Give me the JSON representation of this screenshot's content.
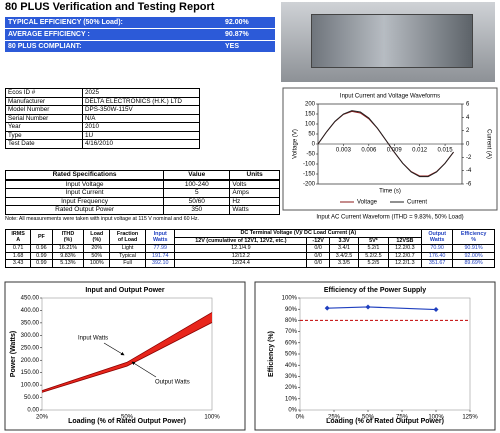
{
  "header": {
    "title": "80 PLUS Verification and Testing Report"
  },
  "summary": [
    {
      "label": "TYPICAL EFFICIENCY (50% Load):",
      "value": "92.00%"
    },
    {
      "label": "AVERAGE EFFICIENCY :",
      "value": "90.87%"
    },
    {
      "label": "80 PLUS COMPLIANT:",
      "value": "YES"
    }
  ],
  "info": [
    [
      "Ecos ID #",
      "2025"
    ],
    [
      "Manufacturer",
      "DELTA ELECTRONICS (H.K.) LTD"
    ],
    [
      "Model Number",
      "DPS-350W-115V"
    ],
    [
      "Serial Number",
      "N/A"
    ],
    [
      "Year",
      "2010"
    ],
    [
      "Type",
      "1U"
    ],
    [
      "Test Date",
      "4/16/2010"
    ]
  ],
  "waveform": {
    "type": "line",
    "title": "Input Current and Voltage Waveforms",
    "x": [
      0,
      0.001,
      0.002,
      0.003,
      0.004,
      0.005,
      0.006,
      0.007,
      0.008,
      0.009,
      0.01,
      0.011,
      0.012,
      0.013,
      0.014,
      0.015,
      0.016
    ],
    "xlim": [
      0,
      0.017
    ],
    "xticks": [
      0.003,
      0.006,
      0.009,
      0.012,
      0.015
    ],
    "ylim": [
      -200,
      200
    ],
    "yticks": [
      200,
      150,
      100,
      50,
      0,
      -50,
      -100,
      -150,
      -200
    ],
    "y2lim": [
      -6,
      6
    ],
    "y2ticks": [
      6,
      4,
      2,
      0,
      -2,
      -4,
      -6
    ],
    "xlabel": "Time (s)",
    "ylabel": "Voltage (V)",
    "y2label": "Current (A)",
    "series": [
      {
        "name": "Voltage",
        "color": "#8b1a1a",
        "values": [
          0,
          60,
          112,
          148,
          163,
          155,
          126,
          79,
          20,
          -41,
          -96,
          -138,
          -160,
          -160,
          -138,
          -96,
          -41
        ]
      },
      {
        "name": "Current",
        "color": "#222222",
        "axis": "y2",
        "values": [
          0,
          1.8,
          3.4,
          4.5,
          5,
          4.8,
          3.9,
          2.4,
          0.6,
          -1.2,
          -2.9,
          -4.2,
          -4.9,
          -4.9,
          -4.2,
          -2.9,
          -1.2
        ]
      }
    ],
    "caption": "Input AC Current Waveform (ITHD = 9.83%, 50% Load)"
  },
  "rated": {
    "header": [
      "Rated Specifications",
      "Value",
      "Units"
    ],
    "rows": [
      [
        "Input Voltage",
        "100-240",
        "Volts"
      ],
      [
        "Input Current",
        "5",
        "Amps"
      ],
      [
        "Input Frequency",
        "50/60",
        "Hz"
      ],
      [
        "Rated Output Power",
        "350",
        "Watts"
      ]
    ]
  },
  "note": "Note: All measurements were taken with input voltage at 115 V nominal and 60 Hz.",
  "measurements": {
    "header": [
      "IRMS\nA",
      "PF",
      "ITHD\n(%)",
      "Load\n(%)",
      "Fraction\nof Load",
      "Input\nWatts",
      "DC Terminal Voltage (V)/ DC Load Current (A)",
      "Output\nWatts",
      "Efficiency\n%"
    ],
    "subheader": [
      "12V (cumulative of 12V1, 12V2, etc.)",
      "-12V",
      "3.3V",
      "5V*",
      "12VSB"
    ],
    "rows": [
      [
        "0.71",
        "0.96",
        "16.21%",
        "20%",
        "Light",
        "77.99",
        "12.1/4.9",
        "0/0",
        "3.4/1",
        "5.2/1",
        "12.2/0.3",
        "70.90",
        "90.91%"
      ],
      [
        "1.68",
        "0.99",
        "9.83%",
        "50%",
        "Typical",
        "191.74",
        "12/12.2",
        "0/0",
        "3.4/2.5",
        "5.2/2.5",
        "12.2/0.7",
        "176.40",
        "92.00%"
      ],
      [
        "3.43",
        "0.99",
        "5.13%",
        "100%",
        "Full",
        "392.10",
        "12/24.4",
        "0/0",
        "3.3/5",
        "5.2/5",
        "12.2/1.3",
        "351.67",
        "89.69%"
      ]
    ]
  },
  "power_chart": {
    "type": "line",
    "title": "Input and Output Power",
    "categories": [
      "20%",
      "50%",
      "100%"
    ],
    "ylim": [
      0,
      450
    ],
    "yticks": [
      {
        "value": 0,
        "label": "0.00"
      },
      {
        "value": 50,
        "label": "50.00"
      },
      {
        "value": 100,
        "label": "100.00"
      },
      {
        "value": 150,
        "label": "150.00"
      },
      {
        "value": 200,
        "label": "200.00"
      },
      {
        "value": 250,
        "label": "250.00"
      },
      {
        "value": 300,
        "label": "300.00"
      },
      {
        "value": 350,
        "label": "350.00"
      },
      {
        "value": 400,
        "label": "400.00"
      },
      {
        "value": 450,
        "label": "450.00"
      }
    ],
    "ylabel": "Power (Watts)",
    "xlabel": "Loading (% of Rated Output Power)",
    "fill": "#e8261c",
    "series": [
      {
        "name": "Input Watts",
        "color": "#8b0000",
        "values": [
          77.99,
          191.74,
          392.1
        ]
      },
      {
        "name": "Output Watts",
        "color": "#8b0000",
        "values": [
          70.9,
          176.4,
          351.67
        ]
      }
    ]
  },
  "efficiency_chart": {
    "type": "line",
    "title": "Efficiency of the Power Supply",
    "x": [
      20,
      50,
      100
    ],
    "values": [
      90.91,
      92.0,
      89.69
    ],
    "color": "#1f3fbf",
    "threshold": 80,
    "threshold_color": "#c00000",
    "xlim": [
      0,
      125
    ],
    "xticks": [
      {
        "value": 0,
        "label": "0%"
      },
      {
        "value": 25,
        "label": "25%"
      },
      {
        "value": 50,
        "label": "50%"
      },
      {
        "value": 75,
        "label": "75%"
      },
      {
        "value": 100,
        "label": "100%"
      },
      {
        "value": 125,
        "label": "125%"
      }
    ],
    "ylim": [
      0,
      100
    ],
    "yticks": [
      {
        "value": 0,
        "label": "0%"
      },
      {
        "value": 10,
        "label": "10%"
      },
      {
        "value": 20,
        "label": "20%"
      },
      {
        "value": 30,
        "label": "30%"
      },
      {
        "value": 40,
        "label": "40%"
      },
      {
        "value": 50,
        "label": "50%"
      },
      {
        "value": 60,
        "label": "60%"
      },
      {
        "value": 70,
        "label": "70%"
      },
      {
        "value": 80,
        "label": "80%"
      },
      {
        "value": 90,
        "label": "90%"
      },
      {
        "value": 100,
        "label": "100%"
      }
    ],
    "ylabel": "Efficiency (%)",
    "xlabel": "Loading (% of Rated Output Power)"
  }
}
